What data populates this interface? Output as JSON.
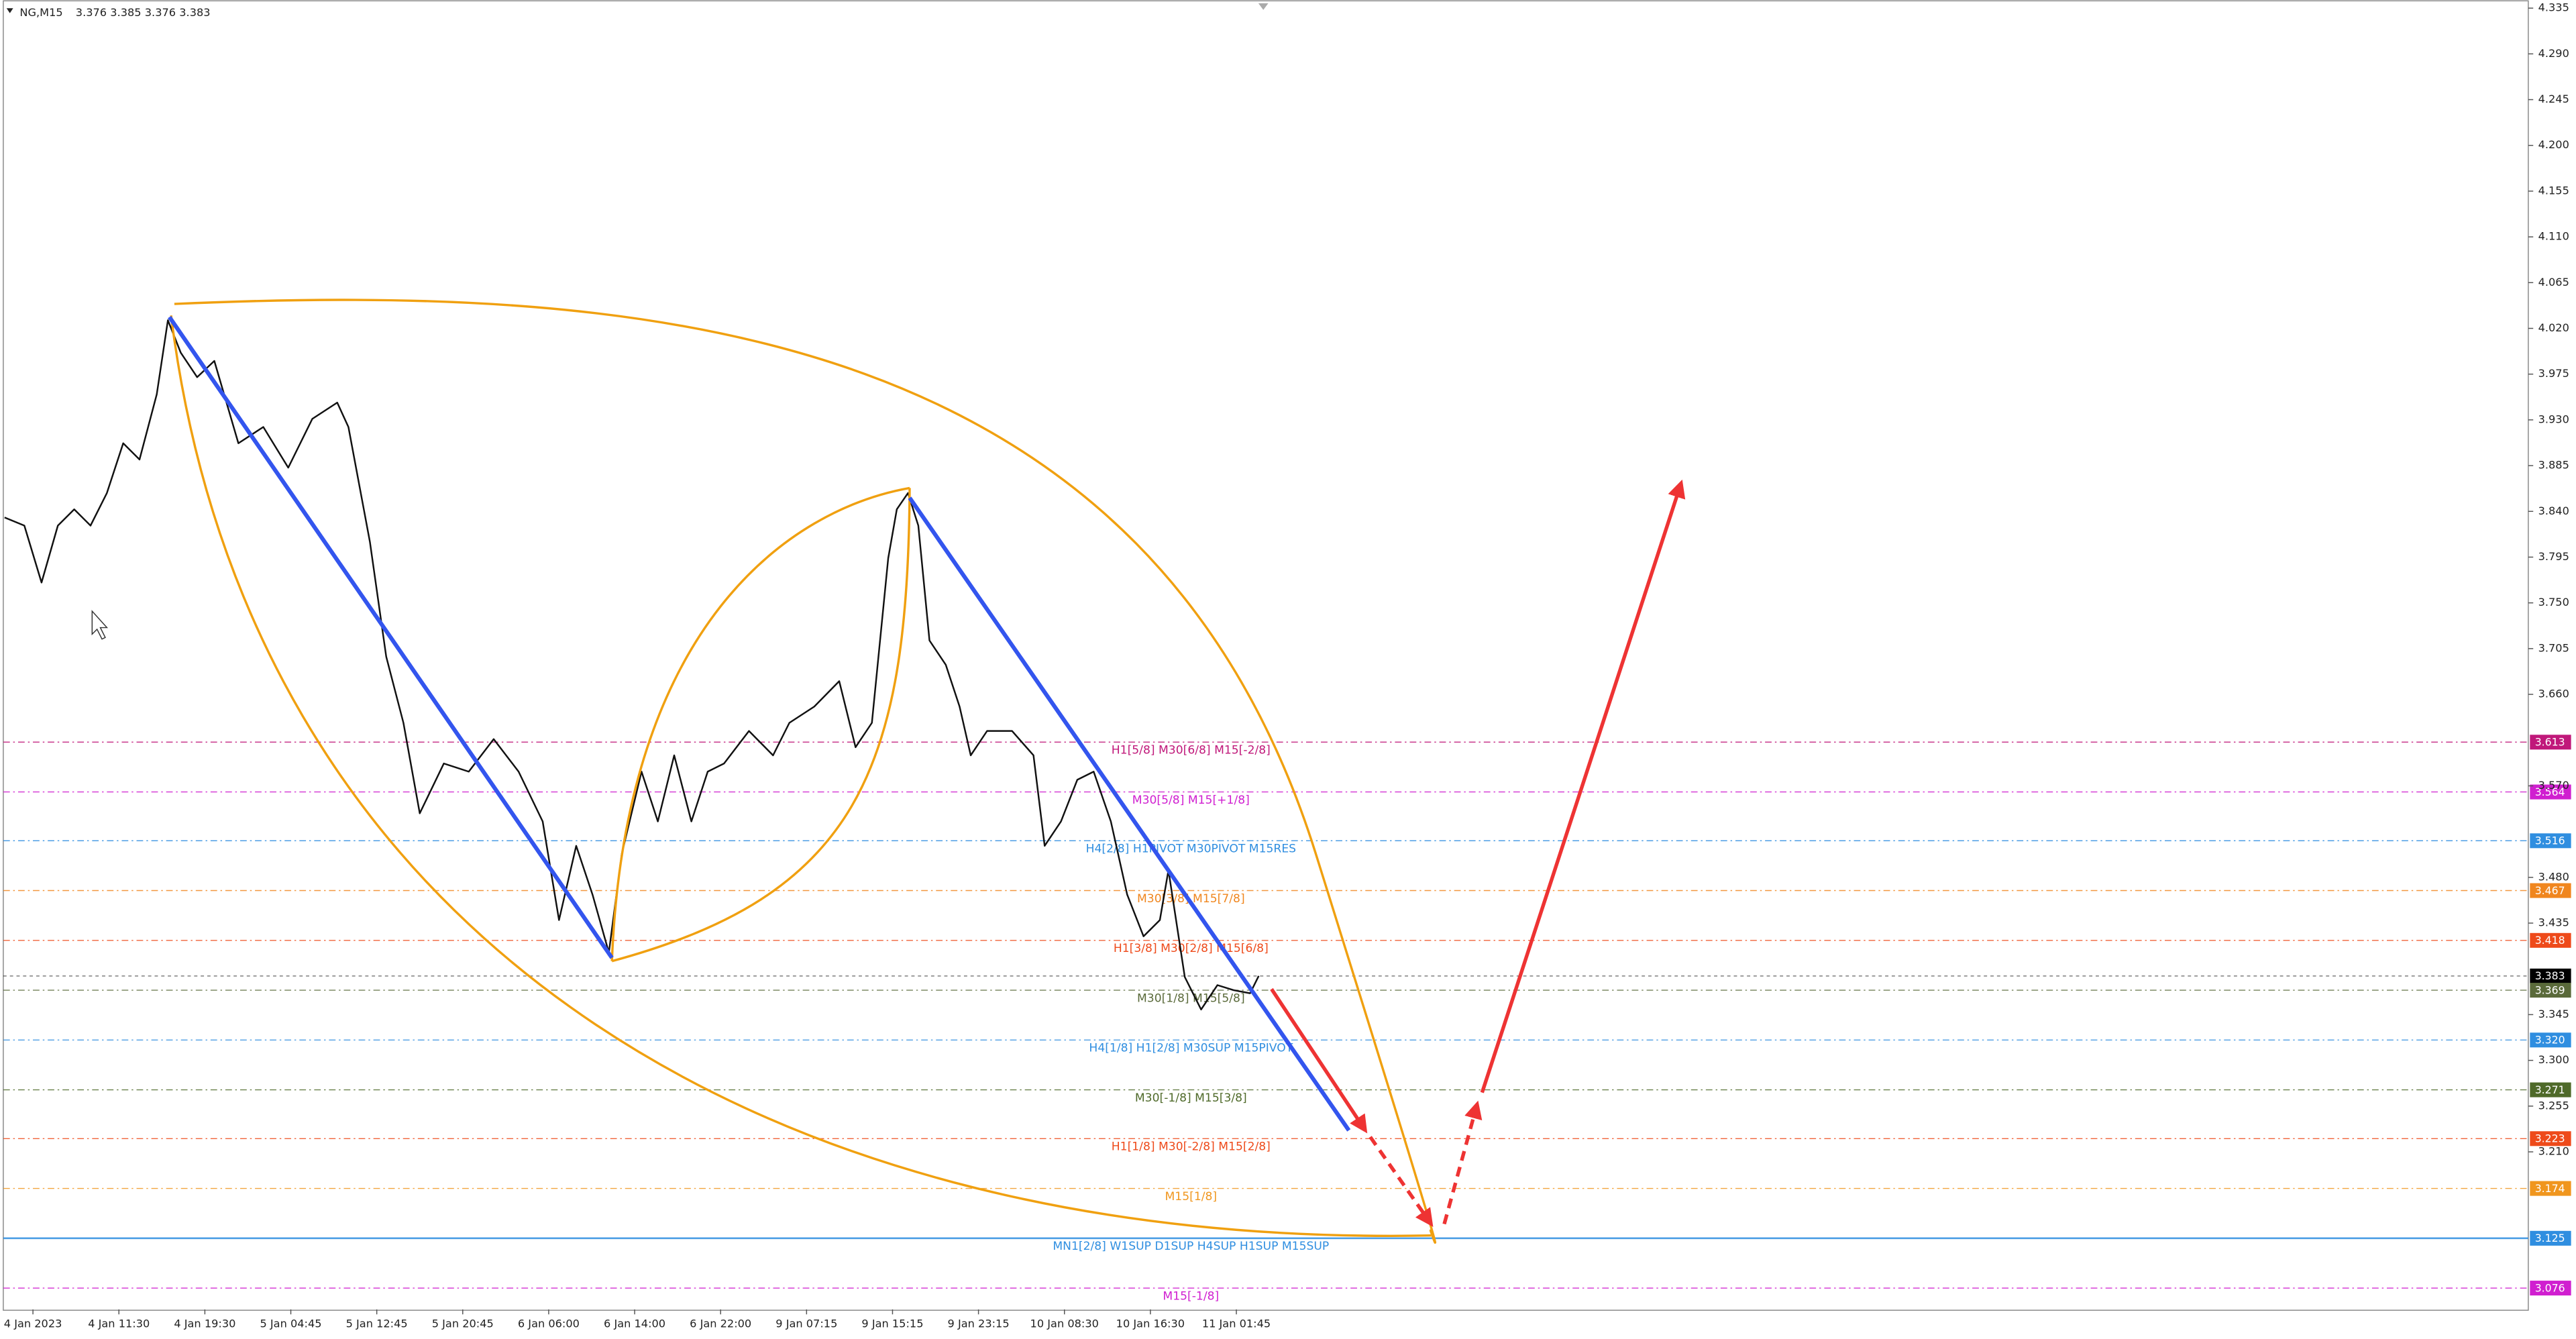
{
  "chart_data": {
    "type": "line",
    "symbol": "NG,M15",
    "ohlc": [
      3.376,
      3.385,
      3.376,
      3.383
    ],
    "color": "#111111",
    "xlim": [
      -0.345,
      29.03
    ],
    "ylim": [
      3.055,
      4.343
    ],
    "xticks": [
      {
        "value": 0,
        "label": "4 Jan 2023"
      },
      {
        "value": 1,
        "label": "4 Jan 11:30"
      },
      {
        "value": 2,
        "label": "4 Jan 19:30"
      },
      {
        "value": 3,
        "label": "5 Jan 04:45"
      },
      {
        "value": 4,
        "label": "5 Jan 12:45"
      },
      {
        "value": 5,
        "label": "5 Jan 20:45"
      },
      {
        "value": 6,
        "label": "6 Jan 06:00"
      },
      {
        "value": 7,
        "label": "6 Jan 14:00"
      },
      {
        "value": 8,
        "label": "6 Jan 22:00"
      },
      {
        "value": 9,
        "label": "9 Jan 07:15"
      },
      {
        "value": 10,
        "label": "9 Jan 15:15"
      },
      {
        "value": 11,
        "label": "9 Jan 23:15"
      },
      {
        "value": 12,
        "label": "10 Jan 08:30"
      },
      {
        "value": 13,
        "label": "10 Jan 16:30"
      },
      {
        "value": 14,
        "label": "11 Jan 01:45"
      }
    ],
    "yticks": [
      4.335,
      {
        "value": 4.29,
        "label": "4.290"
      },
      4.245,
      {
        "value": 4.2,
        "label": "4.200"
      },
      4.155,
      {
        "value": 4.11,
        "label": "4.110"
      },
      4.065,
      {
        "value": 4.02,
        "label": "4.020"
      },
      3.975,
      {
        "value": 3.93,
        "label": "3.930"
      },
      3.885,
      {
        "value": 3.84,
        "label": "3.840"
      },
      3.795,
      {
        "value": 3.75,
        "label": "3.750"
      },
      3.705,
      {
        "value": 3.66,
        "label": "3.660"
      },
      {
        "value": 3.57,
        "label": "3.570"
      },
      {
        "value": 3.48,
        "label": "3.480"
      },
      3.435,
      3.345,
      {
        "value": 3.3,
        "label": "3.300"
      },
      3.255,
      {
        "value": 3.21,
        "label": "3.210"
      }
    ],
    "x": [
      -0.33,
      -0.1,
      0.1,
      0.29,
      0.48,
      0.67,
      0.86,
      1.05,
      1.24,
      1.44,
      1.57,
      1.72,
      1.91,
      2.11,
      2.39,
      2.68,
      2.97,
      3.25,
      3.54,
      3.67,
      3.92,
      4.11,
      4.31,
      4.5,
      4.78,
      5.07,
      5.36,
      5.65,
      5.93,
      6.12,
      6.32,
      6.51,
      6.7,
      6.85,
      7.08,
      7.27,
      7.46,
      7.66,
      7.85,
      8.04,
      8.33,
      8.61,
      8.8,
      9.09,
      9.38,
      9.57,
      9.76,
      9.95,
      10.05,
      10.18,
      10.3,
      10.43,
      10.62,
      10.78,
      10.91,
      11.1,
      11.39,
      11.64,
      11.77,
      11.96,
      12.15,
      12.34,
      12.54,
      12.73,
      12.92,
      13.11,
      13.21,
      13.4,
      13.59,
      13.78,
      13.97,
      14.16,
      14.26
    ],
    "values": [
      3.834,
      3.826,
      3.77,
      3.826,
      3.842,
      3.826,
      3.858,
      3.907,
      3.891,
      3.955,
      4.028,
      3.996,
      3.972,
      3.988,
      3.907,
      3.923,
      3.883,
      3.931,
      3.947,
      3.923,
      3.81,
      3.697,
      3.632,
      3.543,
      3.592,
      3.584,
      3.616,
      3.584,
      3.535,
      3.438,
      3.511,
      3.463,
      3.406,
      3.503,
      3.584,
      3.535,
      3.6,
      3.535,
      3.584,
      3.592,
      3.624,
      3.6,
      3.632,
      3.648,
      3.673,
      3.608,
      3.632,
      3.794,
      3.842,
      3.858,
      3.826,
      3.713,
      3.689,
      3.648,
      3.6,
      3.624,
      3.624,
      3.6,
      3.511,
      3.535,
      3.576,
      3.584,
      3.535,
      3.463,
      3.422,
      3.438,
      3.487,
      3.382,
      3.35,
      3.374,
      3.369,
      3.366,
      3.383
    ],
    "levels": [
      {
        "value": 3.613,
        "text": "H1[5/8] M30[6/8] M15[-2/8]",
        "color": "#c0187a"
      },
      {
        "value": 3.564,
        "text": "M30[5/8] M15[+1/8]",
        "color": "#d01fd0"
      },
      {
        "value": 3.516,
        "text": "H4[2/8] H1PIVOT M30PIVOT M15RES",
        "color": "#2f8ee0"
      },
      {
        "value": 3.467,
        "text": "M30[3/8] M15[7/8]",
        "color": "#f0861e"
      },
      {
        "value": 3.418,
        "text": "H1[3/8] M30[2/8] M15[6/8]",
        "color": "#ee4a1a"
      },
      {
        "value": 3.383,
        "color": "#000000"
      },
      {
        "value": 3.369,
        "text": "M30[1/8] M15[5/8]",
        "color": "#5a6a3a"
      },
      {
        "value": 3.32,
        "label": "3.320",
        "text": "H4[1/8] H1[2/8] M30SUP M15PIVOT",
        "color": "#2f8ee0"
      },
      {
        "value": 3.271,
        "text": "M30[-1/8] M15[3/8]",
        "color": "#4f6a2a"
      },
      {
        "value": 3.223,
        "text": "H1[1/8] M30[-2/8] M15[2/8]",
        "color": "#ee4a1a"
      },
      {
        "value": 3.174,
        "text": "M15[1/8]",
        "color": "#f0961e"
      },
      {
        "value": 3.125,
        "text": "MN1[2/8] W1SUP D1SUP H4SUP H1SUP M15SUP",
        "color": "#2f8ee0"
      },
      {
        "value": 3.076,
        "text": "M15[-1/8]",
        "color": "#d01fd0"
      }
    ]
  }
}
